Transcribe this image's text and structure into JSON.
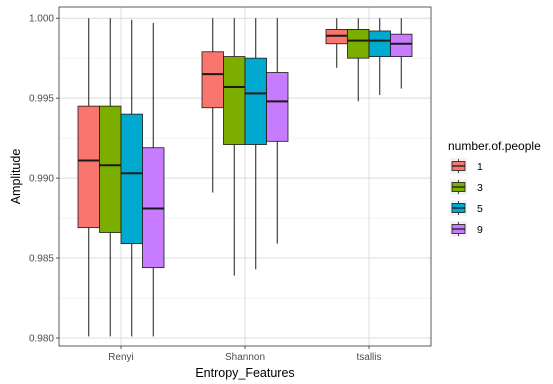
{
  "chart_data": {
    "type": "box",
    "xlabel": "Entropy_Features",
    "ylabel": "Amplitude",
    "ylim": [
      0.9795,
      1.0007
    ],
    "yticks": [
      0.98,
      0.985,
      0.99,
      0.995,
      1.0
    ],
    "ytick_labels": [
      "0.980",
      "0.985",
      "0.990",
      "0.995",
      "1.000"
    ],
    "categories": [
      "Renyi",
      "Shannon",
      "tsallis"
    ],
    "legend": {
      "title": "number.of.people",
      "placement": "right"
    },
    "grid": true,
    "series": [
      {
        "name": "1",
        "color": "#F8766D",
        "boxes": [
          {
            "category": "Renyi",
            "min": 0.9801,
            "q1": 0.9869,
            "median": 0.9911,
            "q3": 0.9945,
            "max": 1.0
          },
          {
            "category": "Shannon",
            "min": 0.9891,
            "q1": 0.9944,
            "median": 0.9965,
            "q3": 0.9979,
            "max": 1.0
          },
          {
            "category": "tsallis",
            "min": 0.9969,
            "q1": 0.9984,
            "median": 0.9989,
            "q3": 0.9993,
            "max": 1.0
          }
        ]
      },
      {
        "name": "3",
        "color": "#7CAE00",
        "boxes": [
          {
            "category": "Renyi",
            "min": 0.9801,
            "q1": 0.9866,
            "median": 0.9908,
            "q3": 0.9945,
            "max": 1.0
          },
          {
            "category": "Shannon",
            "min": 0.9839,
            "q1": 0.9921,
            "median": 0.9957,
            "q3": 0.9976,
            "max": 1.0
          },
          {
            "category": "tsallis",
            "min": 0.9948,
            "q1": 0.9975,
            "median": 0.9986,
            "q3": 0.9993,
            "max": 1.0
          }
        ]
      },
      {
        "name": "5",
        "color": "#00A9D0",
        "boxes": [
          {
            "category": "Renyi",
            "min": 0.9801,
            "q1": 0.9859,
            "median": 0.9903,
            "q3": 0.994,
            "max": 0.9999
          },
          {
            "category": "Shannon",
            "min": 0.9843,
            "q1": 0.9921,
            "median": 0.9953,
            "q3": 0.9975,
            "max": 1.0
          },
          {
            "category": "tsallis",
            "min": 0.9952,
            "q1": 0.9976,
            "median": 0.9986,
            "q3": 0.9992,
            "max": 1.0
          }
        ]
      },
      {
        "name": "9",
        "color": "#C77CFF",
        "boxes": [
          {
            "category": "Renyi",
            "min": 0.9801,
            "q1": 0.9844,
            "median": 0.9881,
            "q3": 0.9919,
            "max": 0.9997
          },
          {
            "category": "Shannon",
            "min": 0.9859,
            "q1": 0.9923,
            "median": 0.9948,
            "q3": 0.9966,
            "max": 1.0
          },
          {
            "category": "tsallis",
            "min": 0.9956,
            "q1": 0.9976,
            "median": 0.9984,
            "q3": 0.999,
            "max": 1.0
          }
        ]
      }
    ]
  }
}
